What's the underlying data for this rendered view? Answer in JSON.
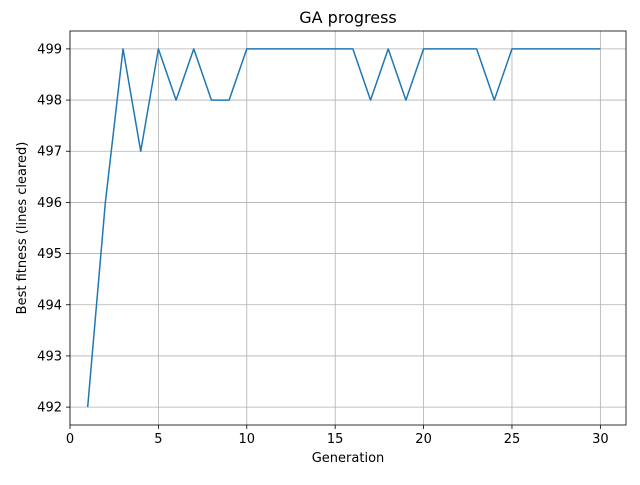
{
  "chart_data": {
    "type": "line",
    "title": "GA progress",
    "xlabel": "Generation",
    "ylabel": "Best fitness (lines cleared)",
    "xlim": [
      0.0,
      31.45
    ],
    "ylim": [
      491.65,
      499.35
    ],
    "xticks": [
      0,
      5,
      10,
      15,
      20,
      25,
      30
    ],
    "yticks": [
      492,
      493,
      494,
      495,
      496,
      497,
      498,
      499
    ],
    "grid": true,
    "series": [
      {
        "color": "#1f77b4",
        "x": [
          1,
          2,
          3,
          4,
          5,
          6,
          7,
          8,
          9,
          10,
          11,
          12,
          13,
          14,
          15,
          16,
          17,
          18,
          19,
          20,
          21,
          22,
          23,
          24,
          25,
          26,
          27,
          28,
          29,
          30
        ],
        "y": [
          492,
          496,
          499,
          497,
          499,
          498,
          499,
          498,
          498,
          499,
          499,
          499,
          499,
          499,
          499,
          499,
          498,
          499,
          498,
          499,
          499,
          499,
          499,
          498,
          499,
          499,
          499,
          499,
          499,
          499
        ]
      }
    ]
  }
}
